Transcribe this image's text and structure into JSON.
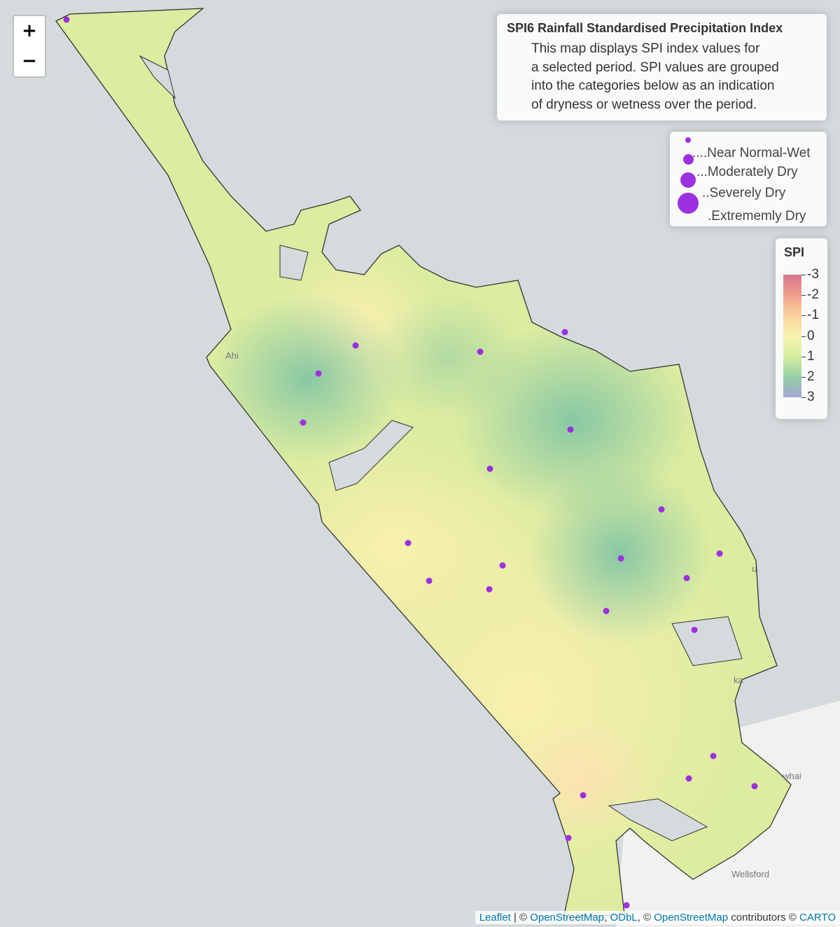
{
  "zoom": {
    "in": "+",
    "out": "−"
  },
  "info": {
    "title": "SPI6 Rainfall Standardised Precipitation Index",
    "lines": [
      "This map displays SPI index values for",
      "a selected period. SPI values are grouped",
      "into the categories below as an indication",
      "of dryness or wetness over the period."
    ]
  },
  "size_legend": {
    "color": "#9b30e0",
    "entries": [
      "....Near Normal-Wet",
      "...Moderately Dry",
      "..Severely Dry",
      ".Extrememly Dry"
    ]
  },
  "spi_legend": {
    "title": "SPI",
    "ticks": [
      -3,
      -2,
      -1,
      0,
      1,
      2,
      3
    ],
    "colors": [
      "#d6768e",
      "#ef9f8f",
      "#fbd29c",
      "#f7f3b1",
      "#d6eea0",
      "#95cfa6",
      "#a3a6d6"
    ]
  },
  "place_labels": [
    "Ahi",
    "u",
    "ka",
    "whai",
    "Wellsford"
  ],
  "attribution": [
    "Leaflet",
    " | © ",
    "OpenStreetMap",
    ", ",
    "ODbL",
    ", © ",
    "OpenStreetMap",
    " contributors © ",
    "CARTO"
  ]
}
